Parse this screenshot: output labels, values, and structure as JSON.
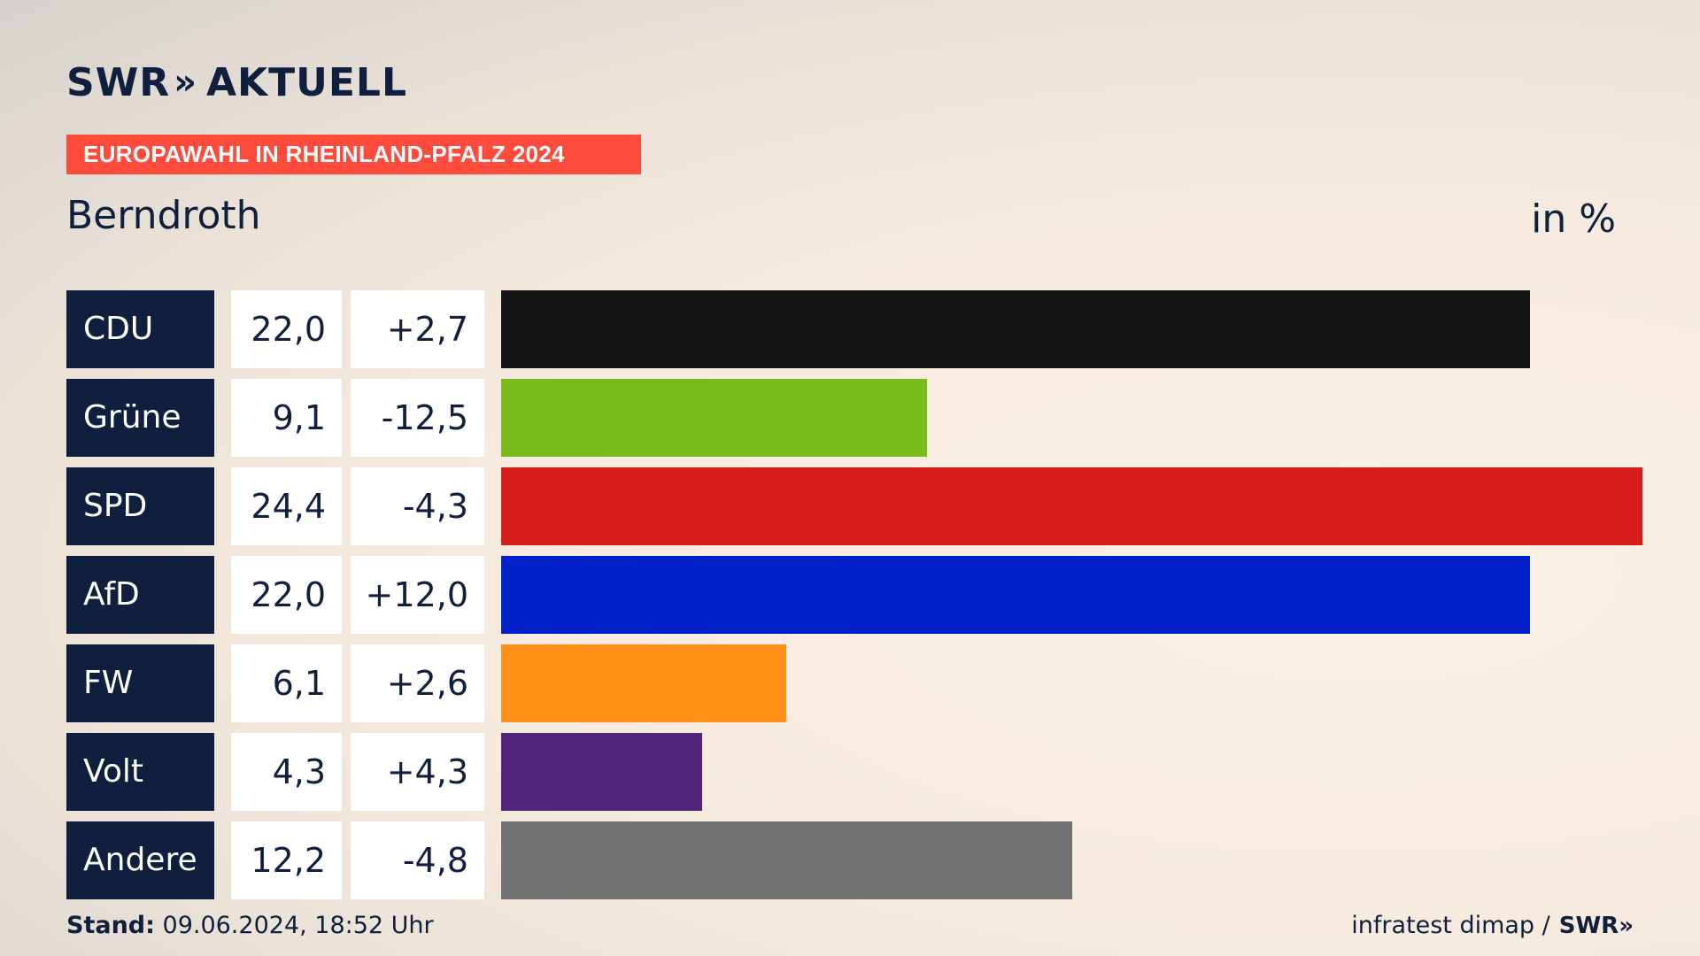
{
  "header": {
    "brand": "SWR",
    "brand_suffix": "AKTUELL",
    "tag": "EUROPAWAHL IN RHEINLAND-PFALZ 2024",
    "location": "Berndroth",
    "unit": "in %"
  },
  "colors": {
    "navy": "#0f1f3d",
    "tag": "#ff4b3c"
  },
  "chart_data": {
    "type": "bar",
    "title": "Berndroth",
    "ylabel": "in %",
    "categories": [
      "CDU",
      "Grüne",
      "SPD",
      "AfD",
      "FW",
      "Volt",
      "Andere"
    ],
    "values": [
      22.0,
      9.1,
      24.4,
      22.0,
      6.1,
      4.3,
      12.2
    ],
    "value_labels": [
      "22,0",
      "9,1",
      "24,4",
      "22,0",
      "6,1",
      "4,3",
      "12,2"
    ],
    "diff_labels": [
      "+2,7",
      "-12,5",
      "-4,3",
      "+12,0",
      "+2,6",
      "+4,3",
      "-4,8"
    ],
    "colors": [
      "#141414",
      "#78bc1b",
      "#d71f1d",
      "#0021c8",
      "#ff8f16",
      "#512379",
      "#717171"
    ],
    "xlim": [
      0,
      24.4
    ]
  },
  "footer": {
    "stand_label": "Stand:",
    "stand_value": "09.06.2024, 18:52 Uhr",
    "source": "infratest dimap /",
    "source_brand": "SWR"
  }
}
